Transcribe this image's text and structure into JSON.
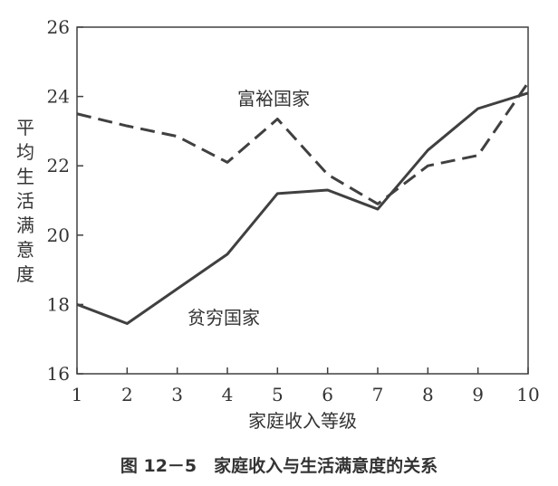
{
  "chart_data": {
    "type": "line",
    "x": [
      1,
      2,
      3,
      4,
      5,
      6,
      7,
      8,
      9,
      10
    ],
    "series": [
      {
        "name": "富裕国家",
        "style": "dashed",
        "values": [
          23.5,
          23.15,
          22.85,
          22.1,
          23.35,
          21.75,
          20.9,
          22.0,
          22.3,
          24.4
        ]
      },
      {
        "name": "贫穷国家",
        "style": "solid",
        "values": [
          18.0,
          17.45,
          18.45,
          19.45,
          21.2,
          21.3,
          20.75,
          22.45,
          23.65,
          24.1
        ]
      }
    ],
    "xlabel": "家庭收入等级",
    "ylabel": "平均生活满意度",
    "xlim": [
      1,
      10
    ],
    "ylim": [
      16,
      26
    ],
    "yticks": [
      16,
      18,
      20,
      22,
      24,
      26
    ],
    "xticks": [
      1,
      2,
      3,
      4,
      5,
      6,
      7,
      8,
      9,
      10
    ],
    "grid": false,
    "legend": "none",
    "line_color": "#404040"
  },
  "caption": "图 12－5　家庭收入与生活满意度的关系"
}
